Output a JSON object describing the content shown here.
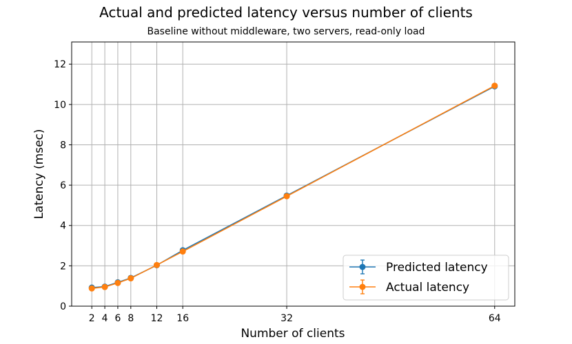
{
  "chart_data": {
    "type": "line",
    "title": "Actual and predicted latency versus number of clients",
    "subtitle": "Baseline without middleware, two servers, read-only load",
    "xlabel": "Number of clients",
    "ylabel": "Latency (msec)",
    "x": [
      2,
      4,
      6,
      8,
      12,
      16,
      32,
      64
    ],
    "xticks": [
      "2",
      "4",
      "6",
      "8",
      "12",
      "16",
      "32",
      "64"
    ],
    "yticks": [
      "0",
      "2",
      "4",
      "6",
      "8",
      "10",
      "12"
    ],
    "xlim": [
      -1.1,
      67.1
    ],
    "ylim": [
      0,
      13.1
    ],
    "grid": true,
    "legend_position": "lower-right",
    "series": [
      {
        "name": "Predicted latency",
        "color": "#1f77b4",
        "values": [
          0.92,
          0.97,
          1.18,
          1.4,
          2.03,
          2.77,
          5.48,
          10.9
        ]
      },
      {
        "name": "Actual latency",
        "color": "#ff7f0e",
        "values": [
          0.88,
          0.95,
          1.15,
          1.38,
          2.04,
          2.71,
          5.45,
          10.93
        ]
      }
    ]
  }
}
